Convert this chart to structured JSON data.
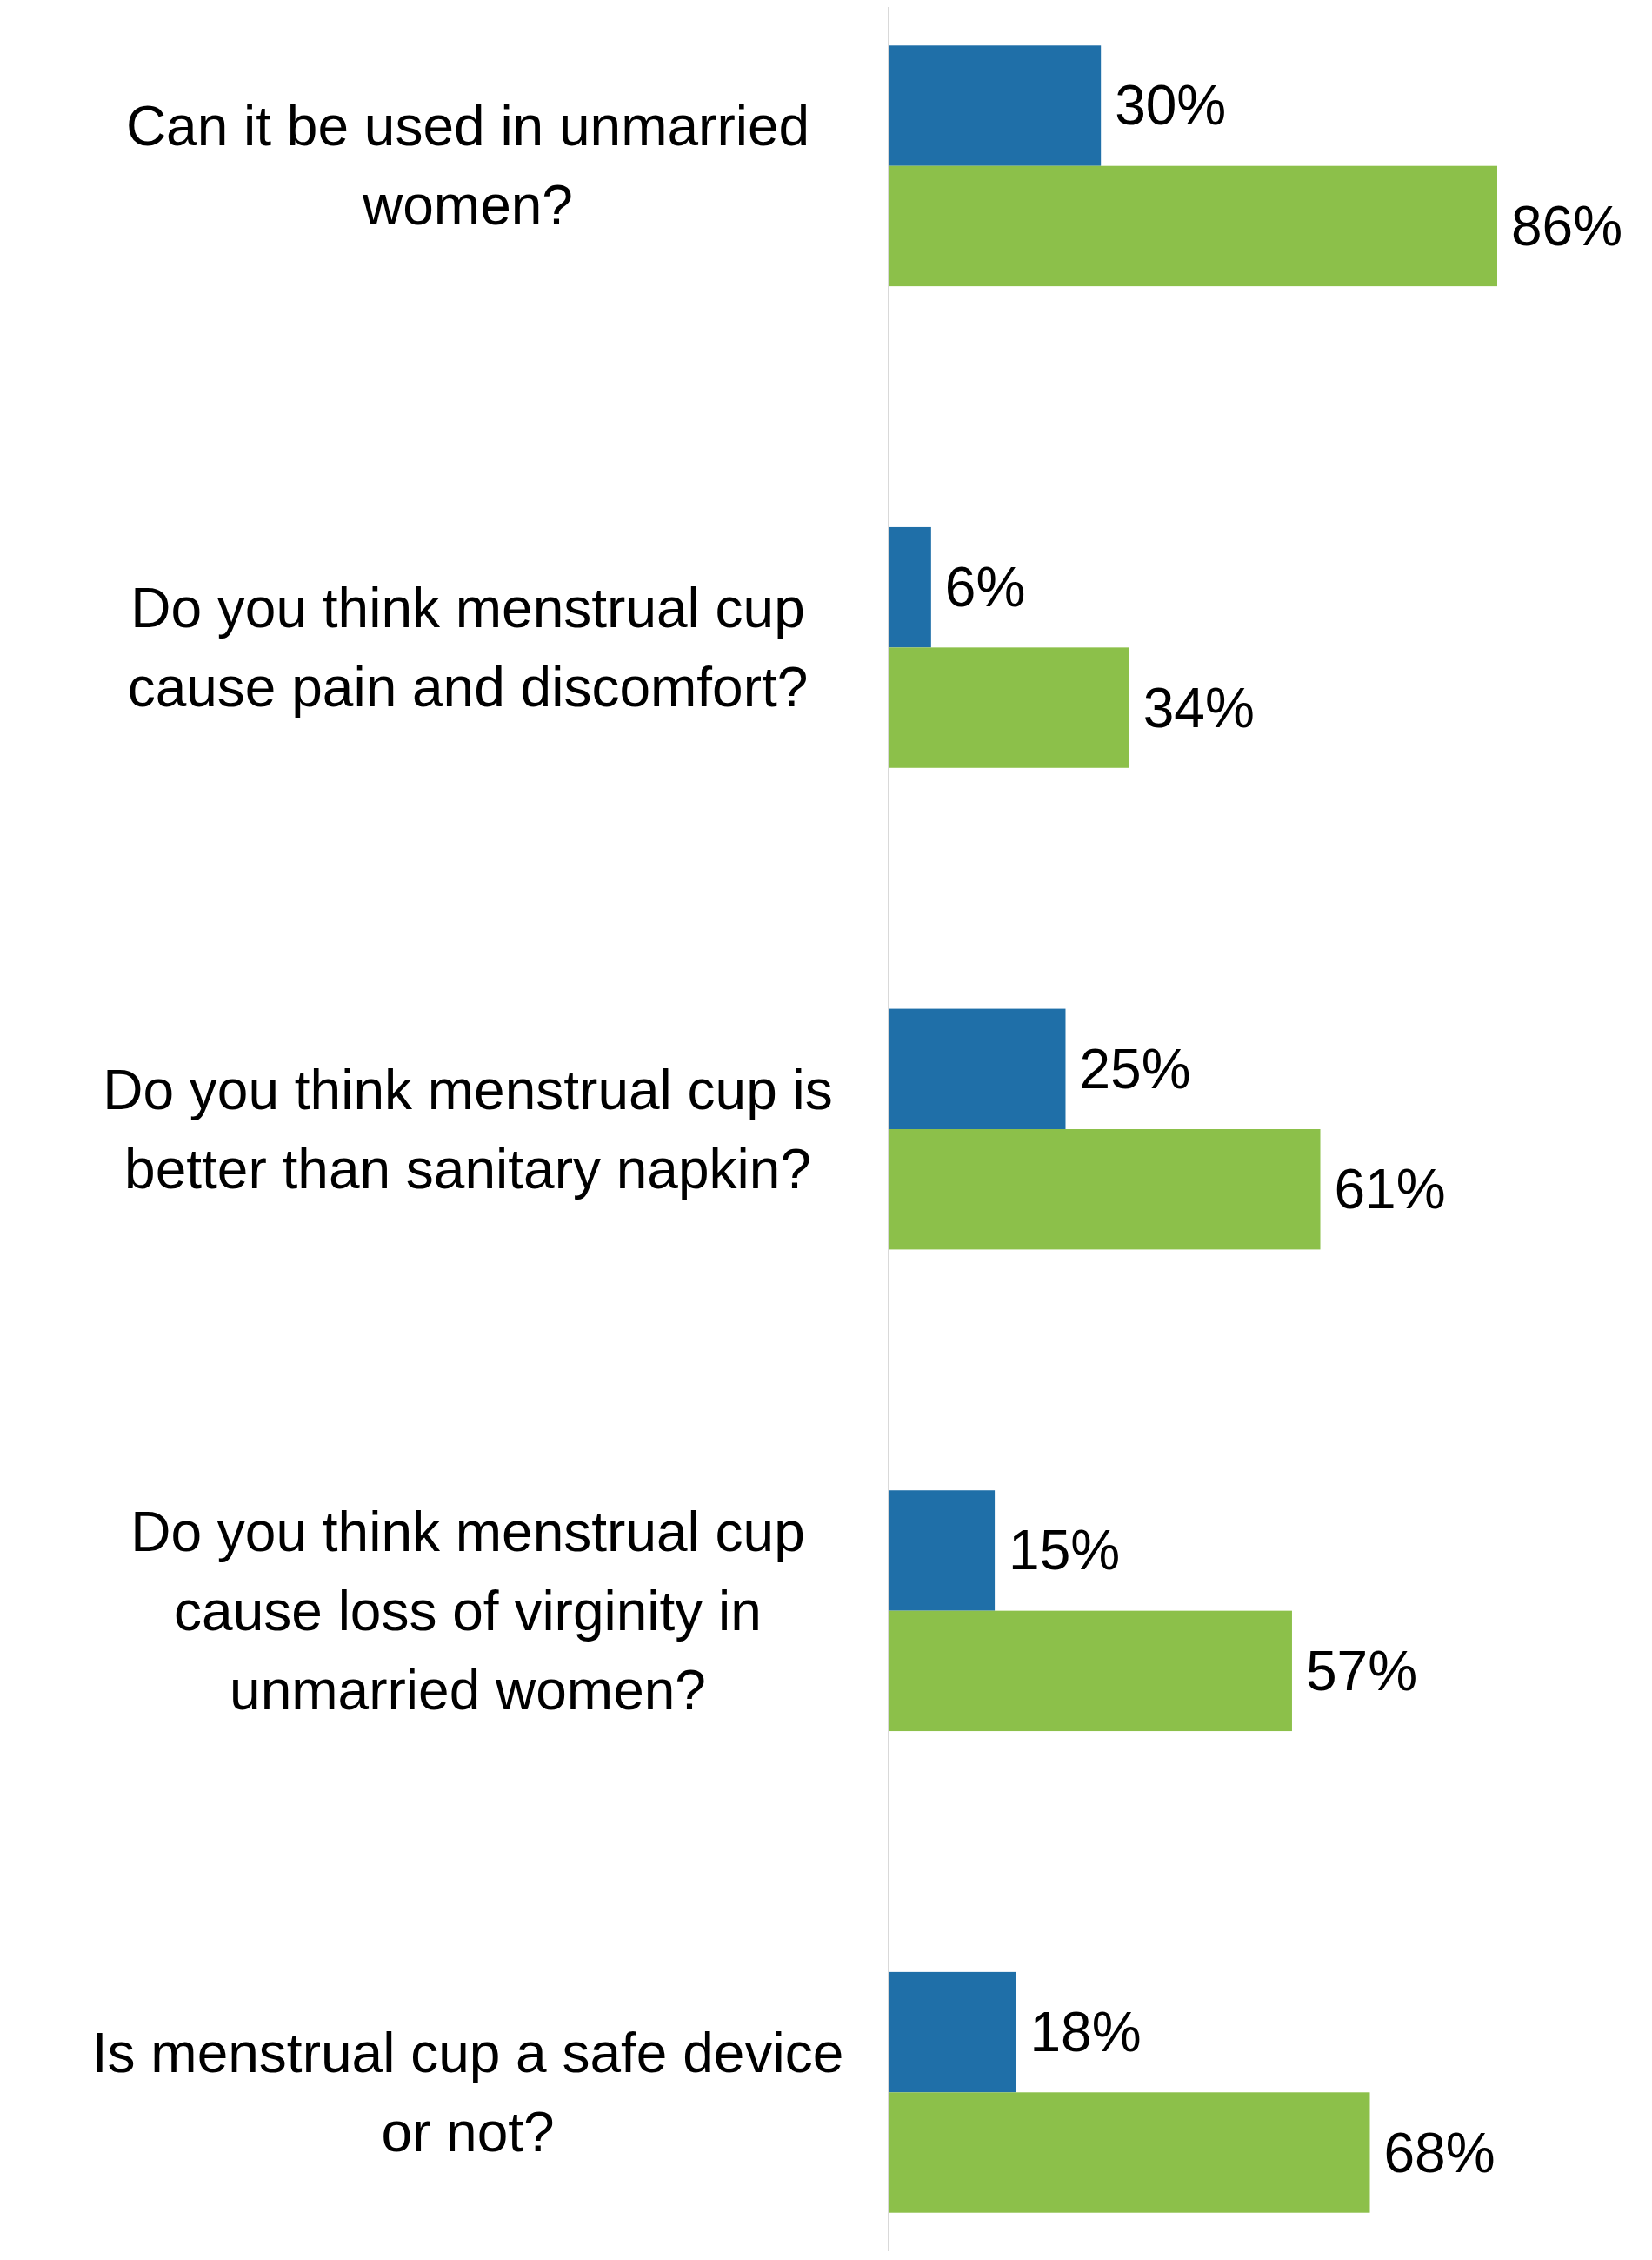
{
  "chart_data": {
    "type": "bar",
    "orientation": "horizontal",
    "categories": [
      "Can it be used in unmarried women?",
      "Do you think menstrual cup cause pain and discomfort?",
      "Do you think menstrual cup is better than sanitary napkin?",
      "Do you think menstrual cup cause loss of virginity in unmarried women?",
      "Is menstrual cup a safe device or not?"
    ],
    "series": [
      {
        "color": "#1f6fa8",
        "values": [
          30,
          6,
          25,
          15,
          18
        ],
        "value_labels": [
          "30%",
          "6%",
          "25%",
          "15%",
          "18%"
        ]
      },
      {
        "color": "#8cc04a",
        "values": [
          86,
          34,
          61,
          57,
          68
        ],
        "value_labels": [
          "86%",
          "34%",
          "61%",
          "57%",
          "68%"
        ]
      }
    ]
  }
}
